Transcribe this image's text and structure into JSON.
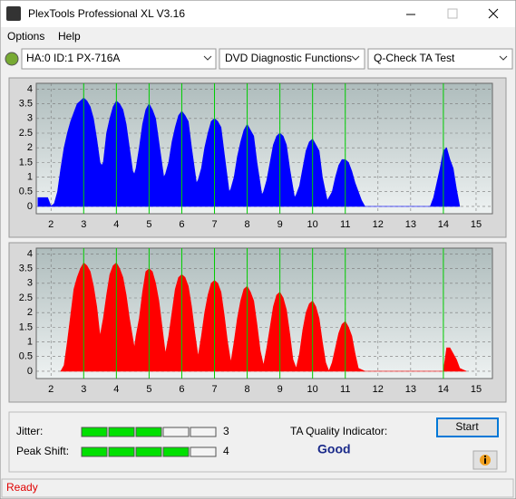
{
  "window": {
    "title": "PlexTools Professional XL V3.16"
  },
  "menu": [
    "Options",
    "Help"
  ],
  "toolbar": {
    "drive": "HA:0 ID:1  PX-716A",
    "function": "DVD Diagnostic Functions",
    "test": "Q-Check TA Test"
  },
  "chart_data": [
    {
      "type": "area",
      "color": "#0000ff",
      "x": [
        1.6,
        1.65,
        1.7,
        1.9,
        2.0,
        2.1,
        2.2,
        2.3,
        2.4,
        2.5,
        2.6,
        2.7,
        2.8,
        2.9,
        3.0,
        3.1,
        3.2,
        3.3,
        3.4,
        3.5,
        3.55,
        3.6,
        3.7,
        3.8,
        3.9,
        4.0,
        4.1,
        4.2,
        4.3,
        4.4,
        4.5,
        4.55,
        4.6,
        4.7,
        4.8,
        4.9,
        5.0,
        5.1,
        5.2,
        5.3,
        5.45,
        5.5,
        5.6,
        5.7,
        5.8,
        5.9,
        6.0,
        6.1,
        6.2,
        6.3,
        6.45,
        6.5,
        6.6,
        6.7,
        6.8,
        6.9,
        7.0,
        7.1,
        7.2,
        7.3,
        7.45,
        7.5,
        7.6,
        7.7,
        7.8,
        7.9,
        8.0,
        8.1,
        8.2,
        8.3,
        8.45,
        8.5,
        8.6,
        8.7,
        8.8,
        8.9,
        9.0,
        9.1,
        9.2,
        9.3,
        9.45,
        9.5,
        9.6,
        9.7,
        9.8,
        9.9,
        10.0,
        10.1,
        10.2,
        10.3,
        10.45,
        10.5,
        10.6,
        10.7,
        10.8,
        10.9,
        11.0,
        11.1,
        11.2,
        11.3,
        11.4,
        11.5,
        11.6,
        13.6,
        13.7,
        13.8,
        13.9,
        14.0,
        14.1,
        14.2,
        14.3,
        14.4,
        14.5
      ],
      "values": [
        0.3,
        0.3,
        0.3,
        0.3,
        0.0,
        0.1,
        0.5,
        1.3,
        2.0,
        2.5,
        2.9,
        3.2,
        3.5,
        3.6,
        3.7,
        3.6,
        3.4,
        3.0,
        2.3,
        1.5,
        1.4,
        1.5,
        2.5,
        3.0,
        3.4,
        3.6,
        3.5,
        3.3,
        2.8,
        2.0,
        1.2,
        1.1,
        1.3,
        2.0,
        2.8,
        3.3,
        3.5,
        3.3,
        3.0,
        2.2,
        1.0,
        1.1,
        1.5,
        2.2,
        2.7,
        3.1,
        3.25,
        3.1,
        2.9,
        2.0,
        0.8,
        0.9,
        1.3,
        2.0,
        2.5,
        2.9,
        3.0,
        2.9,
        2.7,
        1.8,
        0.5,
        0.6,
        1.0,
        1.7,
        2.2,
        2.6,
        2.8,
        2.6,
        2.4,
        1.5,
        0.4,
        0.5,
        0.9,
        1.5,
        2.1,
        2.4,
        2.5,
        2.4,
        2.1,
        1.3,
        0.3,
        0.4,
        0.7,
        1.3,
        1.9,
        2.2,
        2.3,
        2.1,
        1.9,
        1.0,
        0.2,
        0.3,
        0.5,
        1.0,
        1.4,
        1.6,
        1.6,
        1.5,
        1.2,
        0.8,
        0.5,
        0.2,
        0.0,
        0.0,
        0.3,
        0.8,
        1.3,
        1.9,
        2.0,
        1.6,
        1.3,
        0.6,
        0.0
      ],
      "xlim": [
        1.55,
        15.5
      ],
      "ylim": [
        -0.25,
        4.2
      ],
      "xticks": [
        2,
        3,
        4,
        5,
        6,
        7,
        8,
        9,
        10,
        11,
        12,
        13,
        14,
        15
      ],
      "yticks": [
        0,
        0.5,
        1,
        1.5,
        2,
        2.5,
        3,
        3.5,
        4
      ],
      "markers": [
        3,
        4,
        5,
        6,
        7,
        8,
        9,
        10,
        11,
        14
      ],
      "marker_color": "#00cc00"
    },
    {
      "type": "area",
      "color": "#ff0000",
      "x": [
        2.3,
        2.4,
        2.5,
        2.6,
        2.7,
        2.8,
        2.9,
        3.0,
        3.1,
        3.2,
        3.3,
        3.4,
        3.5,
        3.6,
        3.7,
        3.8,
        3.9,
        4.0,
        4.1,
        4.2,
        4.3,
        4.4,
        4.55,
        4.6,
        4.7,
        4.8,
        4.9,
        5.0,
        5.1,
        5.2,
        5.3,
        5.4,
        5.5,
        5.6,
        5.7,
        5.8,
        5.9,
        6.0,
        6.1,
        6.2,
        6.3,
        6.4,
        6.5,
        6.6,
        6.7,
        6.8,
        6.9,
        7.0,
        7.1,
        7.2,
        7.3,
        7.4,
        7.5,
        7.6,
        7.7,
        7.8,
        7.9,
        8.0,
        8.1,
        8.2,
        8.3,
        8.4,
        8.5,
        8.6,
        8.7,
        8.8,
        8.9,
        9.0,
        9.1,
        9.2,
        9.3,
        9.4,
        9.5,
        9.6,
        9.7,
        9.8,
        9.9,
        10.0,
        10.1,
        10.2,
        10.3,
        10.4,
        10.5,
        10.6,
        10.7,
        10.8,
        10.9,
        11.0,
        11.1,
        11.2,
        11.3,
        11.4,
        11.6,
        14.0,
        14.1,
        14.2,
        14.3,
        14.4,
        14.5,
        14.7
      ],
      "values": [
        0.0,
        0.2,
        1.0,
        1.9,
        2.8,
        3.2,
        3.5,
        3.7,
        3.6,
        3.4,
        2.9,
        2.2,
        1.2,
        1.8,
        2.6,
        3.3,
        3.6,
        3.7,
        3.5,
        3.2,
        2.6,
        1.8,
        0.8,
        1.2,
        1.8,
        2.7,
        3.4,
        3.5,
        3.4,
        3.0,
        2.4,
        1.5,
        0.6,
        1.2,
        2.0,
        2.8,
        3.2,
        3.3,
        3.2,
        2.9,
        2.2,
        1.3,
        0.5,
        1.2,
        2.0,
        2.6,
        3.0,
        3.1,
        3.0,
        2.7,
        1.9,
        1.0,
        0.3,
        1.0,
        1.8,
        2.4,
        2.8,
        2.9,
        2.7,
        2.4,
        1.6,
        0.7,
        0.2,
        0.8,
        1.5,
        2.2,
        2.6,
        2.7,
        2.5,
        2.1,
        1.3,
        0.4,
        0.1,
        0.6,
        1.4,
        2.0,
        2.3,
        2.4,
        2.2,
        1.8,
        1.0,
        0.3,
        0.0,
        0.3,
        0.8,
        1.3,
        1.6,
        1.7,
        1.5,
        1.2,
        0.6,
        0.1,
        0.0,
        0.0,
        0.8,
        0.8,
        0.6,
        0.4,
        0.1,
        0.0
      ],
      "xlim": [
        1.55,
        15.5
      ],
      "ylim": [
        -0.25,
        4.2
      ],
      "xticks": [
        2,
        3,
        4,
        5,
        6,
        7,
        8,
        9,
        10,
        11,
        12,
        13,
        14,
        15
      ],
      "yticks": [
        0,
        0.5,
        1,
        1.5,
        2,
        2.5,
        3,
        3.5,
        4
      ],
      "markers": [
        3,
        4,
        5,
        6,
        7,
        8,
        9,
        10,
        11,
        14
      ],
      "marker_color": "#00cc00"
    }
  ],
  "panel": {
    "jitter_label": "Jitter:",
    "jitter": 3,
    "peak_shift_label": "Peak Shift:",
    "peak_shift": 4,
    "ta_label": "TA Quality Indicator:",
    "ta_value": "Good",
    "start": "Start"
  },
  "status": "Ready"
}
